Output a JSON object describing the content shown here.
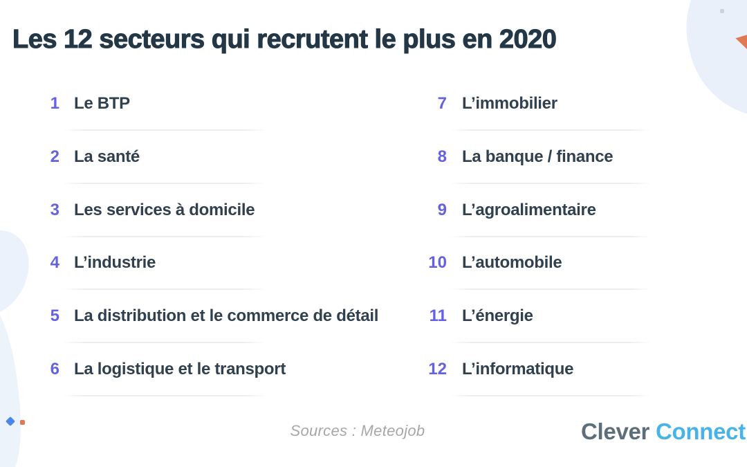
{
  "title": "Les 12 secteurs qui recrutent le plus en 2020",
  "list": {
    "items": [
      {
        "number": "1",
        "label": "Le BTP"
      },
      {
        "number": "2",
        "label": "La santé"
      },
      {
        "number": "3",
        "label": "Les services à domicile"
      },
      {
        "number": "4",
        "label": "L’industrie"
      },
      {
        "number": "5",
        "label": "La distribution et le commerce de détail"
      },
      {
        "number": "6",
        "label": "La logistique et le transport"
      },
      {
        "number": "7",
        "label": "L’immobilier"
      },
      {
        "number": "8",
        "label": "La banque / finance"
      },
      {
        "number": "9",
        "label": "L’agroalimentaire"
      },
      {
        "number": "10",
        "label": "L’automobile"
      },
      {
        "number": "11",
        "label": "L’énergie"
      },
      {
        "number": "12",
        "label": "L’informatique"
      }
    ]
  },
  "footer": {
    "sources": "Sources : Meteojob",
    "logo": {
      "part1": "Clever",
      "part2": "Connect"
    }
  },
  "colors": {
    "title_text": "#233746",
    "number": "#6462e1",
    "item_text": "#31404f",
    "divider": "#ececec",
    "sources_text": "#a7a7a7",
    "logo_clever": "#5d6e7b",
    "logo_connect": "#47b3e6",
    "blob": "#e9f0fa",
    "accent_orange": "#e07a55",
    "accent_blue": "#4b87e8"
  }
}
